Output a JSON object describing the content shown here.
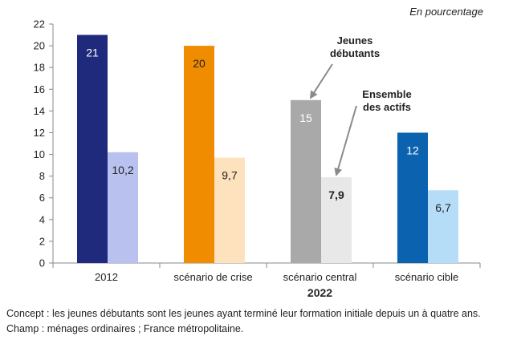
{
  "unit_note": "En pourcentage",
  "chart_data": {
    "type": "bar",
    "categories": [
      "2012",
      "scénario de crise",
      "scénario central",
      "scénario cible"
    ],
    "group_label": "2022",
    "series": [
      {
        "name": "Jeunes débutants",
        "values": [
          21,
          20,
          15,
          12
        ],
        "labels": [
          "21",
          "20",
          "15",
          "12"
        ],
        "colors": [
          "#1f2a7c",
          "#f08c00",
          "#a9a9a9",
          "#0b63b0"
        ]
      },
      {
        "name": "Ensemble des actifs",
        "values": [
          10.2,
          9.7,
          7.9,
          6.7
        ],
        "labels": [
          "10,2",
          "9,7",
          "7,9",
          "6,7"
        ],
        "colors": [
          "#b9c1ef",
          "#fde2bd",
          "#e8e8e8",
          "#b5ddf7"
        ]
      }
    ],
    "ylim": [
      0,
      22
    ],
    "yticks": [
      0,
      2,
      4,
      6,
      8,
      10,
      12,
      14,
      16,
      18,
      20,
      22
    ],
    "annotations": [
      {
        "lines": [
          "Jeunes",
          "débutants"
        ],
        "series": 0,
        "category": 2
      },
      {
        "lines": [
          "Ensemble",
          "des actifs"
        ],
        "series": 1,
        "category": 2
      }
    ],
    "grid": false
  },
  "footnotes": [
    "Concept : les jeunes débutants sont les jeunes ayant terminé leur formation initiale depuis un à quatre ans.",
    "Champ : ménages ordinaires ; France métropolitaine."
  ]
}
